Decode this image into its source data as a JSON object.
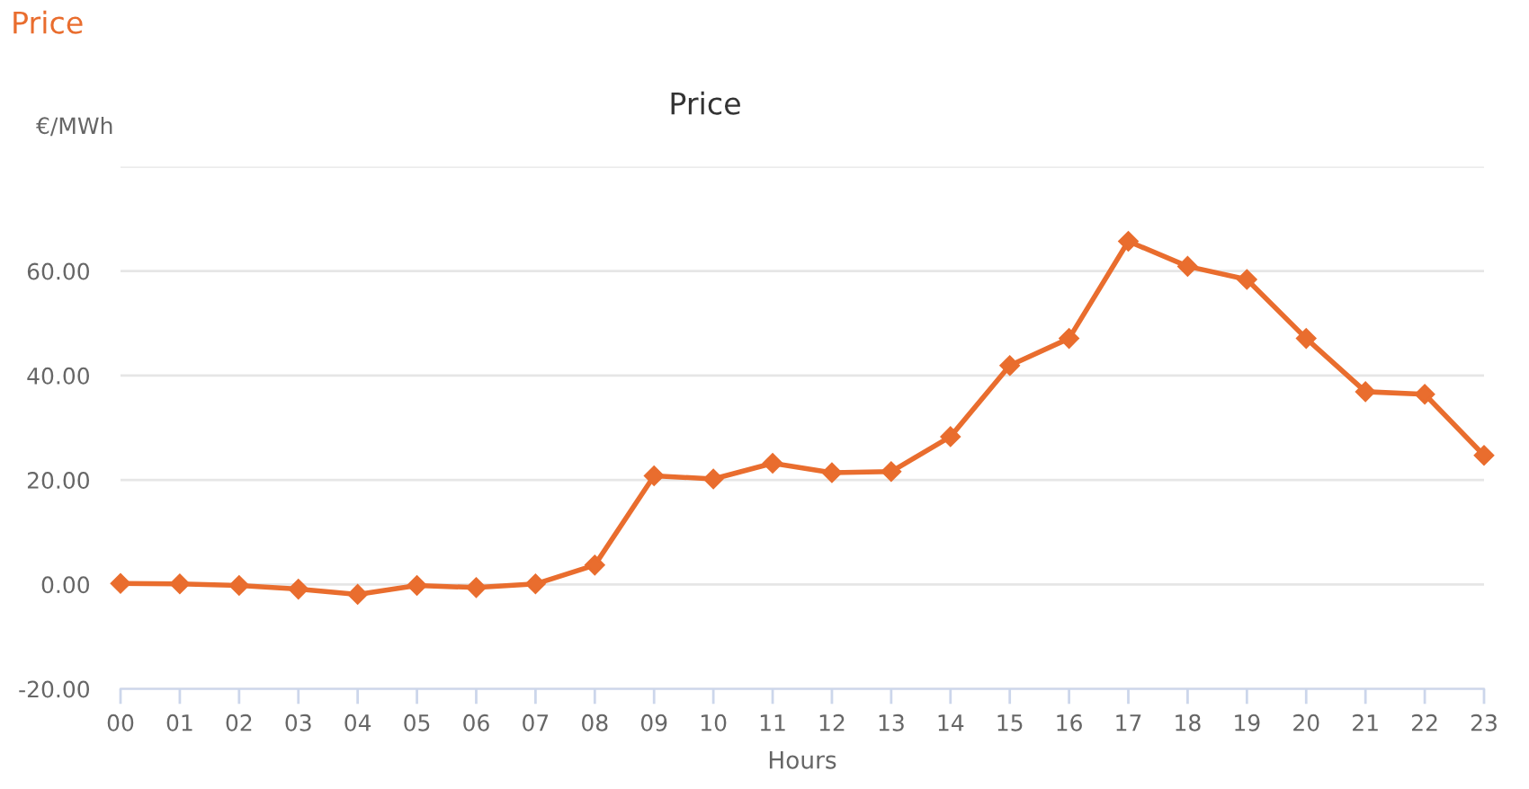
{
  "chart_data": {
    "type": "line",
    "title": "Price",
    "xlabel": "Hours",
    "ylabel": "€/MWh",
    "annotations": [
      "Price"
    ],
    "categories": [
      "00",
      "01",
      "02",
      "03",
      "04",
      "05",
      "06",
      "07",
      "08",
      "09",
      "10",
      "11",
      "12",
      "13",
      "14",
      "15",
      "16",
      "17",
      "18",
      "19",
      "20",
      "21",
      "22",
      "23"
    ],
    "series": [
      {
        "color": "#e96d2e",
        "values": [
          0.2,
          0.1,
          -0.2,
          -0.9,
          -1.9,
          -0.2,
          -0.6,
          0.1,
          3.7,
          20.8,
          20.2,
          23.2,
          21.4,
          21.6,
          28.3,
          41.9,
          47.1,
          65.7,
          60.9,
          58.4,
          47.1,
          36.9,
          36.4,
          24.7
        ]
      }
    ],
    "ylim": [
      -20,
      80
    ],
    "yticks": [
      {
        "value": -20,
        "label": "-20.00"
      },
      {
        "value": 0,
        "label": "0.00"
      },
      {
        "value": 20,
        "label": "20.00"
      },
      {
        "value": 40,
        "label": "40.00"
      },
      {
        "value": 60,
        "label": "60.00"
      },
      {
        "value": 80,
        "label": null
      }
    ],
    "grid": "y",
    "marker": "diamond",
    "line_style": "solid"
  }
}
